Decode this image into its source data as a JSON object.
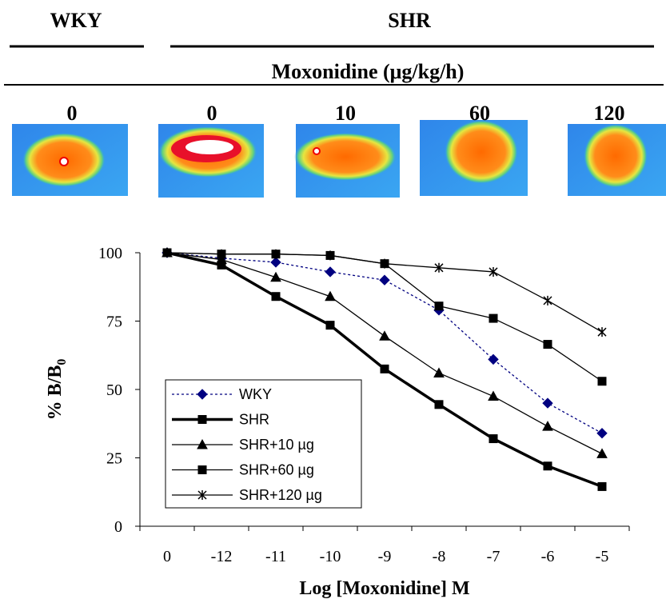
{
  "figure": {
    "group_left": "WKY",
    "group_right": "SHR",
    "treatment": "Moxonidine (μg/kg/h)",
    "panels": [
      "0",
      "0",
      "10",
      "60",
      "120"
    ]
  },
  "chart_data": {
    "type": "line",
    "y_label": {
      "main": "% B/B",
      "subscript": "0"
    },
    "x_label": "Log [Moxonidine] M",
    "categories": [
      "0",
      "-12",
      "-11",
      "-10",
      "-9",
      "-8",
      "-7",
      "-6",
      "-5"
    ],
    "ylim": [
      0,
      100
    ],
    "yticks": [
      0,
      25,
      50,
      75,
      100
    ],
    "grid": false,
    "legend": "lower left",
    "series": [
      {
        "name": "WKY",
        "color": "#000080",
        "marker": "diamond",
        "line_style": "dotted",
        "linewidth": 1.3,
        "values": [
          100,
          98,
          96.5,
          93,
          90,
          79,
          61,
          45,
          34
        ]
      },
      {
        "name": "SHR",
        "color": "#000000",
        "marker": "square",
        "line_style": "solid",
        "linewidth": 3.5,
        "values": [
          100,
          95.5,
          84,
          73.5,
          57.5,
          44.5,
          32,
          22,
          14.5
        ]
      },
      {
        "name": "SHR+10 µg",
        "color": "#000000",
        "marker": "triangle",
        "line_style": "solid",
        "linewidth": 1.3,
        "values": [
          100,
          97.5,
          91,
          84,
          69.5,
          56,
          47.5,
          36.5,
          26.5
        ]
      },
      {
        "name": "SHR+60 µg",
        "color": "#000000",
        "marker": "square",
        "line_style": "solid",
        "linewidth": 1.3,
        "values": [
          100,
          99.5,
          99.5,
          99,
          96,
          80.5,
          76,
          66.5,
          53
        ]
      },
      {
        "name": "SHR+120 µg",
        "color": "#000000",
        "marker": "star",
        "line_style": "solid",
        "linewidth": 1.3,
        "values": [
          100,
          99.5,
          99.5,
          99,
          96,
          94.5,
          93,
          82.5,
          71
        ]
      }
    ]
  }
}
